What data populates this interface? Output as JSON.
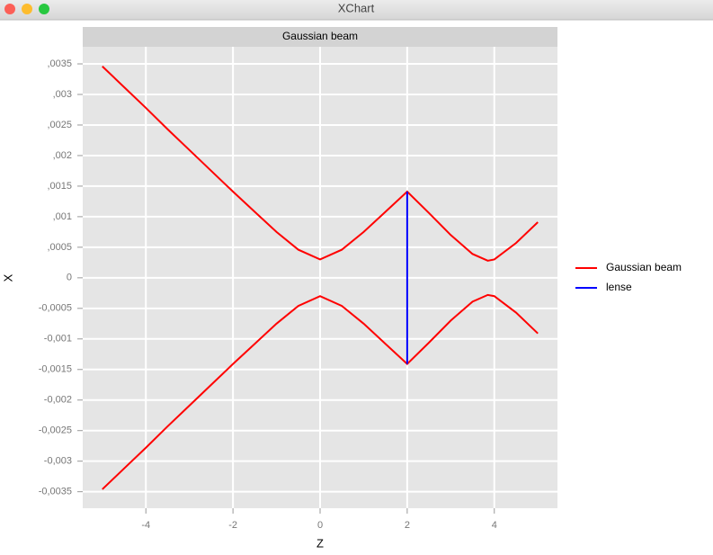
{
  "window_title": "XChart",
  "chart_data": {
    "type": "line",
    "title": "Gaussian beam",
    "x_label": "Z",
    "y_label": "X",
    "series": [
      {
        "name": "Gaussian beam",
        "color": "#ff0000",
        "x": [
          -5,
          -4.5,
          -4,
          -3.5,
          -3,
          -2.5,
          -2,
          -1.5,
          -1,
          -0.5,
          0,
          0.5,
          1,
          1.5,
          2,
          2.5,
          3,
          3.5,
          3.85,
          4,
          4.5,
          5,
          null,
          -5,
          -4.5,
          -4,
          -3.5,
          -3,
          -2.5,
          -2,
          -1.5,
          -1,
          -0.5,
          0,
          0.5,
          1,
          1.5,
          2,
          2.5,
          3,
          3.5,
          3.85,
          4,
          4.5,
          5
        ],
        "values": [
          0.00346,
          0.00312,
          0.00278,
          0.00243,
          0.00209,
          0.00175,
          0.00141,
          0.00108,
          0.00075,
          0.00046,
          0.0003,
          0.00046,
          0.00075,
          0.00108,
          0.00141,
          0.00106,
          0.0007,
          0.00039,
          0.00028,
          0.0003,
          0.00057,
          0.00091,
          null,
          -0.00346,
          -0.00312,
          -0.00278,
          -0.00243,
          -0.00209,
          -0.00175,
          -0.00141,
          -0.00108,
          -0.00075,
          -0.00046,
          -0.0003,
          -0.00046,
          -0.00075,
          -0.00108,
          -0.00141,
          -0.00106,
          -0.0007,
          -0.00039,
          -0.00028,
          -0.0003,
          -0.00057,
          -0.00091
        ]
      },
      {
        "name": "lense",
        "color": "#0000ff",
        "x": [
          2,
          2
        ],
        "values": [
          0.00141,
          -0.00141
        ]
      }
    ],
    "xlim": [
      -5.45,
      5.45
    ],
    "ylim": [
      -0.00377,
      0.00378
    ],
    "xticks": [
      {
        "value": -4,
        "label": "-4"
      },
      {
        "value": -2,
        "label": "-2"
      },
      0,
      2,
      4
    ],
    "yticks": [
      {
        "value": -0.0035,
        "label": "-0,0035"
      },
      {
        "value": -0.003,
        "label": "-0,003"
      },
      {
        "value": -0.0025,
        "label": "-0,0025"
      },
      {
        "value": -0.002,
        "label": "-0,002"
      },
      {
        "value": -0.0015,
        "label": "-0,0015"
      },
      {
        "value": -0.001,
        "label": "-0,001"
      },
      {
        "value": -0.0005,
        "label": "-0,0005"
      },
      0,
      {
        "value": 0.0005,
        "label": ",0005"
      },
      {
        "value": 0.001,
        "label": ",001"
      },
      {
        "value": 0.0015,
        "label": ",0015"
      },
      {
        "value": 0.002,
        "label": ",002"
      },
      {
        "value": 0.0025,
        "label": ",0025"
      },
      {
        "value": 0.003,
        "label": ",003"
      },
      {
        "value": 0.0035,
        "label": ",0035"
      }
    ],
    "grid": true,
    "legend": "right"
  }
}
